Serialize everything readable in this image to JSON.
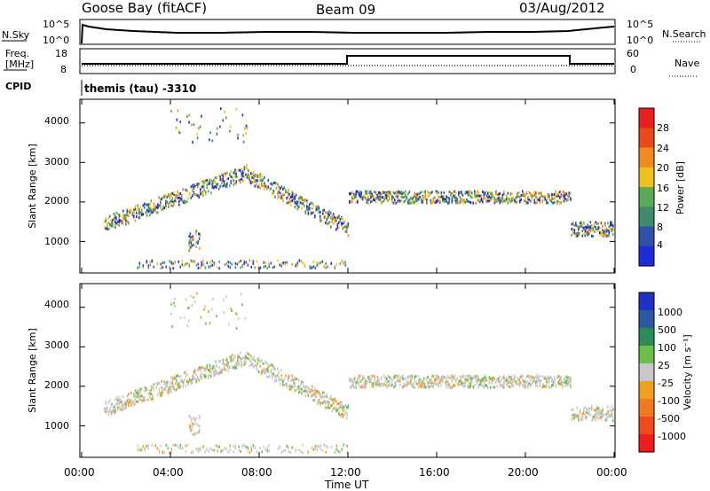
{
  "header": {
    "station": "Goose Bay (fitACF)",
    "beam": "Beam 09",
    "date": "03/Aug/2012"
  },
  "noise_panel": {
    "left_label": "N.Sky",
    "left_ticks": [
      "10^5",
      "10^0"
    ],
    "right_label": "N.Search",
    "right_ticks": [
      "10^5",
      "10^0"
    ],
    "right_legend_line": "dotted"
  },
  "freq_panel": {
    "left_label_1": "Freq.",
    "left_label_2": "[MHz]",
    "left_ticks": [
      "18",
      "8"
    ],
    "right_label": "Nave",
    "right_ticks": [
      "60",
      "0"
    ],
    "right_legend_line": "dotted"
  },
  "cpid": {
    "label": "CPID",
    "value": "themis (tau) -3310"
  },
  "power_panel": {
    "ylabel": "Slant Range [km]",
    "yticks": [
      "1000",
      "2000",
      "3000",
      "4000"
    ],
    "colorbar_label": "Power [dB]",
    "colorbar_ticks": [
      "4",
      "8",
      "12",
      "16",
      "20",
      "24",
      "28"
    ],
    "colorbar_colors": [
      "#1f2bd6",
      "#2f52a6",
      "#3e8a6e",
      "#5aaa5a",
      "#f0c022",
      "#f08a22",
      "#e84a1e",
      "#e8201e"
    ]
  },
  "velocity_panel": {
    "ylabel": "Slant Range [km]",
    "yticks": [
      "1000",
      "2000",
      "3000",
      "4000"
    ],
    "colorbar_label": "Velocity [m s⁻¹]",
    "colorbar_ticks": [
      "1000",
      "500",
      "100",
      "25",
      "-25",
      "-100",
      "-500",
      "-1000"
    ],
    "colorbar_colors": [
      "#2030c0",
      "#2a5aa0",
      "#2f8a5a",
      "#6ac04a",
      "#c8c8c8",
      "#f0a020",
      "#f07a20",
      "#ee4a1e",
      "#ee1e1e"
    ]
  },
  "xaxis": {
    "label": "Time UT",
    "ticks": [
      "00:00",
      "04:00",
      "08:00",
      "12:00",
      "16:00",
      "20:00",
      "00:00"
    ]
  },
  "chart_data": [
    {
      "type": "line",
      "title": "",
      "xlabel": "",
      "ylabel": "N.Sky",
      "yscale": "log",
      "ylim": [
        1,
        100000
      ],
      "x": [
        "00:00",
        "02:00",
        "04:00",
        "06:00",
        "08:00",
        "10:00",
        "12:00",
        "14:00",
        "16:00",
        "18:00",
        "20:00",
        "22:00",
        "24:00"
      ],
      "series": [
        {
          "name": "N.Sky",
          "values": [
            10000,
            3000,
            2000,
            2500,
            2500,
            2000,
            2000,
            2000,
            2000,
            2500,
            3000,
            4000,
            10000
          ]
        }
      ]
    },
    {
      "type": "line",
      "title": "",
      "xlabel": "",
      "ylabel": "Freq. [MHz]",
      "ylim": [
        8,
        18
      ],
      "x": [
        "00:00",
        "12:00",
        "12:00",
        "22:00",
        "22:00",
        "24:00"
      ],
      "series": [
        {
          "name": "Freq.",
          "values": [
            11,
            11,
            16.5,
            16.5,
            11,
            11
          ]
        },
        {
          "name": "Nave",
          "values": [
            10,
            10,
            10,
            10,
            10,
            10
          ]
        }
      ]
    },
    {
      "type": "heatmap",
      "title": "",
      "xlabel": "Time UT",
      "ylabel": "Slant Range [km]",
      "ylim": [
        200,
        4600
      ],
      "xlim": [
        "00:00",
        "24:00"
      ],
      "colorbar": {
        "label": "Power [dB]",
        "range": [
          0,
          30
        ]
      },
      "features": [
        {
          "time_start": 1.0,
          "time_end": 7.5,
          "range_start": 1300,
          "range_end": 2800,
          "description": "rising band"
        },
        {
          "time_start": 7.5,
          "time_end": 12.0,
          "range_start": 1200,
          "range_end": 2600,
          "description": "falling band"
        },
        {
          "time_start": 12.0,
          "time_end": 22.0,
          "range_start": 1800,
          "range_end": 2450,
          "description": "flat band"
        },
        {
          "time_start": 22.0,
          "time_end": 24.0,
          "range_start": 1200,
          "range_end": 1500,
          "description": "late band"
        }
      ]
    },
    {
      "type": "heatmap",
      "title": "",
      "xlabel": "Time UT",
      "ylabel": "Slant Range [km]",
      "ylim": [
        200,
        4600
      ],
      "xlim": [
        "00:00",
        "24:00"
      ],
      "colorbar": {
        "label": "Velocity [m s⁻¹]",
        "range": [
          -1000,
          1000
        ]
      }
    }
  ]
}
